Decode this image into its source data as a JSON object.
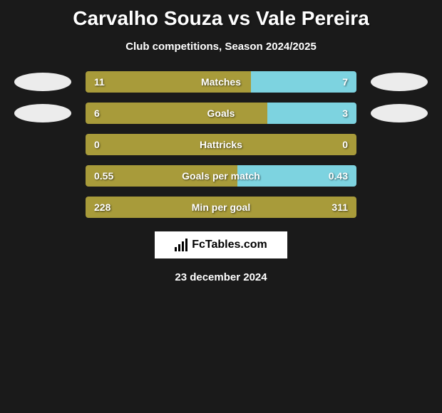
{
  "header": {
    "title": "Carvalho Souza vs Vale Pereira",
    "subtitle": "Club competitions, Season 2024/2025"
  },
  "stats": [
    {
      "label": "Matches",
      "left_value": "11",
      "right_value": "7",
      "left_pct": 61,
      "right_pct": 39,
      "show_ellipses": true
    },
    {
      "label": "Goals",
      "left_value": "6",
      "right_value": "3",
      "left_pct": 67,
      "right_pct": 33,
      "show_ellipses": true
    },
    {
      "label": "Hattricks",
      "left_value": "0",
      "right_value": "0",
      "left_pct": 100,
      "right_pct": 0,
      "show_ellipses": false
    },
    {
      "label": "Goals per match",
      "left_value": "0.55",
      "right_value": "0.43",
      "left_pct": 56,
      "right_pct": 44,
      "show_ellipses": false
    },
    {
      "label": "Min per goal",
      "left_value": "228",
      "right_value": "311",
      "left_pct": 100,
      "right_pct": 0,
      "show_ellipses": false
    }
  ],
  "colors": {
    "left_bar": "#a89b3a",
    "right_bar": "#7dd3e0",
    "background": "#1a1a1a",
    "ellipse": "#ececec"
  },
  "footer": {
    "logo_text": "FcTables.com",
    "date": "23 december 2024"
  }
}
